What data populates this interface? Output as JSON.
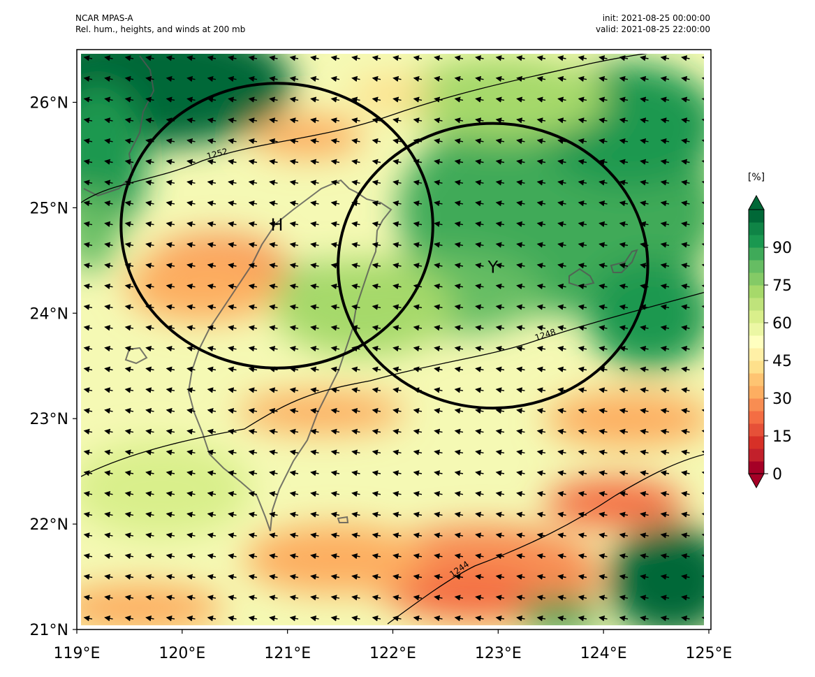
{
  "header": {
    "model": "NCAR MPAS-A",
    "description": "Rel. hum., heights, and winds at 200 mb",
    "init": "init: 2021-08-25 00:00:00",
    "valid": "valid: 2021-08-25 22:00:00"
  },
  "map": {
    "lon_range": [
      119,
      125
    ],
    "lat_range": [
      21,
      26.5
    ],
    "x_ticks": [
      "119°E",
      "120°E",
      "121°E",
      "122°E",
      "123°E",
      "124°E",
      "125°E"
    ],
    "y_ticks": [
      "21°N",
      "22°N",
      "23°N",
      "24°N",
      "25°N",
      "26°N"
    ],
    "markers": [
      {
        "label": "H",
        "lon": 120.9,
        "lat": 24.85
      },
      {
        "label": "Y",
        "lon": 122.95,
        "lat": 24.45
      }
    ],
    "circles": [
      {
        "center_lon": 120.9,
        "center_lat": 24.83,
        "radius_lon": 1.48,
        "radius_lat": 1.35
      },
      {
        "center_lon": 122.95,
        "center_lat": 24.45,
        "radius_lon": 1.47,
        "radius_lat": 1.35
      }
    ],
    "contour_labels": [
      "1252",
      "1248",
      "1244"
    ],
    "wind_direction": "easterly"
  },
  "colorbar": {
    "unit": "[%]",
    "tick_labels": [
      "0",
      "15",
      "30",
      "45",
      "60",
      "75",
      "90"
    ],
    "levels": [
      0,
      5,
      10,
      15,
      20,
      25,
      30,
      35,
      40,
      45,
      50,
      55,
      60,
      65,
      70,
      75,
      80,
      85,
      90,
      95,
      100
    ],
    "colors": [
      "#a50026",
      "#c2202b",
      "#d73027",
      "#e65038",
      "#f46d43",
      "#f88d52",
      "#fdae61",
      "#fec472",
      "#fee08b",
      "#fff0a6",
      "#ffffbf",
      "#ecf7a4",
      "#d9ef8b",
      "#bfe37b",
      "#a6d96a",
      "#84ca66",
      "#66bd63",
      "#3faa59",
      "#1a9850",
      "#0f8446",
      "#006837"
    ]
  }
}
